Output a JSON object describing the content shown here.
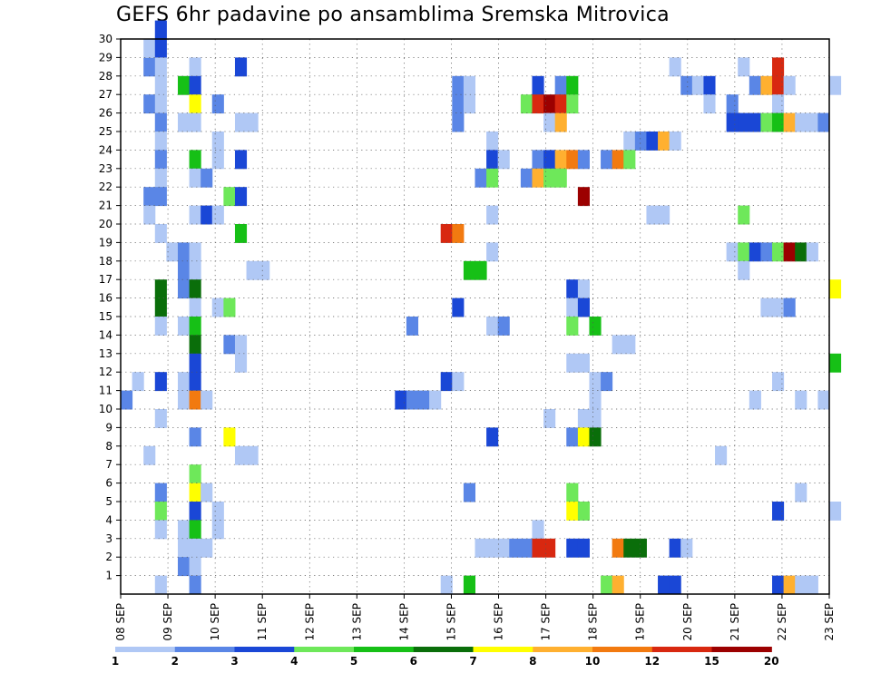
{
  "chart_data": {
    "type": "heatmap",
    "title": "GEFS 6hr padavine po ansamblima Sremska Mitrovica",
    "x_tick_labels": [
      "08 SEP",
      "09 SEP",
      "10 SEP",
      "11 SEP",
      "12 SEP",
      "13 SEP",
      "14 SEP",
      "15 SEP",
      "16 SEP",
      "17 SEP",
      "18 SEP",
      "19 SEP",
      "20 SEP",
      "21 SEP",
      "22 SEP",
      "23 SEP"
    ],
    "y_tick_labels": [
      1,
      2,
      3,
      4,
      5,
      6,
      7,
      8,
      9,
      10,
      11,
      12,
      13,
      14,
      15,
      16,
      17,
      18,
      19,
      20,
      21,
      22,
      23,
      24,
      25,
      26,
      27,
      28,
      29,
      30
    ],
    "x_range_steps": [
      0,
      60
    ],
    "y_range_members": [
      0,
      30
    ],
    "grid": true,
    "colorbar": {
      "labels": [
        "1",
        "2",
        "3",
        "4",
        "5",
        "6",
        "7",
        "8",
        "10",
        "12",
        "15",
        "20"
      ],
      "colors": [
        "#b0c8f5",
        "#5a86e6",
        "#1a47d6",
        "#6ee85a",
        "#16c016",
        "#0a6e0a",
        "#ffff00",
        "#ffb030",
        "#f27a10",
        "#d82810",
        "#9c0000"
      ]
    },
    "cells": [
      {
        "x": 0,
        "y": 10,
        "c": 1
      },
      {
        "x": 1,
        "y": 11,
        "c": 0
      },
      {
        "x": 2,
        "y": 28,
        "c": 1
      },
      {
        "x": 2,
        "y": 29,
        "c": 0
      },
      {
        "x": 2,
        "y": 26,
        "c": 1
      },
      {
        "x": 2,
        "y": 21,
        "c": 1
      },
      {
        "x": 2,
        "y": 20,
        "c": 0
      },
      {
        "x": 2,
        "y": 7,
        "c": 0
      },
      {
        "x": 3,
        "y": 30,
        "c": 2
      },
      {
        "x": 3,
        "y": 29,
        "c": 2
      },
      {
        "x": 3,
        "y": 28,
        "c": 0
      },
      {
        "x": 3,
        "y": 27,
        "c": 0
      },
      {
        "x": 3,
        "y": 26,
        "c": 0
      },
      {
        "x": 3,
        "y": 25,
        "c": 1
      },
      {
        "x": 3,
        "y": 24,
        "c": 0
      },
      {
        "x": 3,
        "y": 23,
        "c": 1
      },
      {
        "x": 3,
        "y": 22,
        "c": 0
      },
      {
        "x": 3,
        "y": 21,
        "c": 1
      },
      {
        "x": 3,
        "y": 19,
        "c": 0
      },
      {
        "x": 3,
        "y": 16,
        "c": 5
      },
      {
        "x": 3,
        "y": 15,
        "c": 5
      },
      {
        "x": 3,
        "y": 14,
        "c": 0
      },
      {
        "x": 3,
        "y": 11,
        "c": 2
      },
      {
        "x": 3,
        "y": 9,
        "c": 0
      },
      {
        "x": 3,
        "y": 5,
        "c": 1
      },
      {
        "x": 3,
        "y": 4,
        "c": 3
      },
      {
        "x": 3,
        "y": 3,
        "c": 0
      },
      {
        "x": 3,
        "y": 0,
        "c": 0
      },
      {
        "x": 4,
        "y": 18,
        "c": 0
      },
      {
        "x": 5,
        "y": 27,
        "c": 4
      },
      {
        "x": 5,
        "y": 25,
        "c": 0
      },
      {
        "x": 5,
        "y": 18,
        "c": 1
      },
      {
        "x": 5,
        "y": 17,
        "c": 1
      },
      {
        "x": 5,
        "y": 16,
        "c": 1
      },
      {
        "x": 5,
        "y": 14,
        "c": 0
      },
      {
        "x": 5,
        "y": 11,
        "c": 0
      },
      {
        "x": 5,
        "y": 10,
        "c": 0
      },
      {
        "x": 5,
        "y": 3,
        "c": 0
      },
      {
        "x": 5,
        "y": 2,
        "c": 0
      },
      {
        "x": 5,
        "y": 1,
        "c": 1
      },
      {
        "x": 6,
        "y": 28,
        "c": 0
      },
      {
        "x": 6,
        "y": 27,
        "c": 2
      },
      {
        "x": 6,
        "y": 26,
        "c": 6
      },
      {
        "x": 6,
        "y": 25,
        "c": 0
      },
      {
        "x": 6,
        "y": 23,
        "c": 4
      },
      {
        "x": 6,
        "y": 22,
        "c": 0
      },
      {
        "x": 6,
        "y": 20,
        "c": 0
      },
      {
        "x": 6,
        "y": 18,
        "c": 0
      },
      {
        "x": 6,
        "y": 17,
        "c": 0
      },
      {
        "x": 6,
        "y": 16,
        "c": 5
      },
      {
        "x": 6,
        "y": 15,
        "c": 0
      },
      {
        "x": 6,
        "y": 14,
        "c": 4
      },
      {
        "x": 6,
        "y": 13,
        "c": 5
      },
      {
        "x": 6,
        "y": 12,
        "c": 2
      },
      {
        "x": 6,
        "y": 11,
        "c": 2
      },
      {
        "x": 6,
        "y": 10,
        "c": 8
      },
      {
        "x": 6,
        "y": 8,
        "c": 1
      },
      {
        "x": 6,
        "y": 6,
        "c": 3
      },
      {
        "x": 6,
        "y": 5,
        "c": 6
      },
      {
        "x": 6,
        "y": 4,
        "c": 2
      },
      {
        "x": 6,
        "y": 3,
        "c": 4
      },
      {
        "x": 6,
        "y": 2,
        "c": 0
      },
      {
        "x": 6,
        "y": 1,
        "c": 0
      },
      {
        "x": 6,
        "y": 0,
        "c": 1
      },
      {
        "x": 7,
        "y": 22,
        "c": 1
      },
      {
        "x": 7,
        "y": 20,
        "c": 2
      },
      {
        "x": 7,
        "y": 10,
        "c": 0
      },
      {
        "x": 7,
        "y": 5,
        "c": 0
      },
      {
        "x": 7,
        "y": 2,
        "c": 0
      },
      {
        "x": 8,
        "y": 26,
        "c": 1
      },
      {
        "x": 8,
        "y": 24,
        "c": 0
      },
      {
        "x": 8,
        "y": 23,
        "c": 0
      },
      {
        "x": 8,
        "y": 20,
        "c": 0
      },
      {
        "x": 8,
        "y": 15,
        "c": 0
      },
      {
        "x": 8,
        "y": 4,
        "c": 0
      },
      {
        "x": 8,
        "y": 3,
        "c": 0
      },
      {
        "x": 9,
        "y": 21,
        "c": 3
      },
      {
        "x": 9,
        "y": 15,
        "c": 3
      },
      {
        "x": 9,
        "y": 13,
        "c": 1
      },
      {
        "x": 9,
        "y": 8,
        "c": 6
      },
      {
        "x": 10,
        "y": 28,
        "c": 2
      },
      {
        "x": 10,
        "y": 25,
        "c": 0
      },
      {
        "x": 10,
        "y": 23,
        "c": 2
      },
      {
        "x": 10,
        "y": 21,
        "c": 2
      },
      {
        "x": 10,
        "y": 19,
        "c": 4
      },
      {
        "x": 10,
        "y": 13,
        "c": 0
      },
      {
        "x": 10,
        "y": 12,
        "c": 0
      },
      {
        "x": 10,
        "y": 7,
        "c": 0
      },
      {
        "x": 11,
        "y": 25,
        "c": 0
      },
      {
        "x": 11,
        "y": 17,
        "c": 0
      },
      {
        "x": 11,
        "y": 7,
        "c": 0
      },
      {
        "x": 12,
        "y": 17,
        "c": 0
      },
      {
        "x": 24,
        "y": 10,
        "c": 2
      },
      {
        "x": 25,
        "y": 14,
        "c": 1
      },
      {
        "x": 25,
        "y": 10,
        "c": 1
      },
      {
        "x": 26,
        "y": 10,
        "c": 1
      },
      {
        "x": 27,
        "y": 10,
        "c": 0
      },
      {
        "x": 28,
        "y": 19,
        "c": 9
      },
      {
        "x": 28,
        "y": 11,
        "c": 2
      },
      {
        "x": 28,
        "y": 0,
        "c": 0
      },
      {
        "x": 29,
        "y": 27,
        "c": 1
      },
      {
        "x": 29,
        "y": 26,
        "c": 1
      },
      {
        "x": 29,
        "y": 25,
        "c": 1
      },
      {
        "x": 29,
        "y": 19,
        "c": 8
      },
      {
        "x": 29,
        "y": 15,
        "c": 2
      },
      {
        "x": 29,
        "y": 11,
        "c": 0
      },
      {
        "x": 30,
        "y": 27,
        "c": 0
      },
      {
        "x": 30,
        "y": 26,
        "c": 0
      },
      {
        "x": 30,
        "y": 17,
        "c": 4
      },
      {
        "x": 30,
        "y": 5,
        "c": 1
      },
      {
        "x": 30,
        "y": 0,
        "c": 4
      },
      {
        "x": 31,
        "y": 22,
        "c": 1
      },
      {
        "x": 31,
        "y": 17,
        "c": 4
      },
      {
        "x": 31,
        "y": 2,
        "c": 0
      },
      {
        "x": 32,
        "y": 24,
        "c": 0
      },
      {
        "x": 32,
        "y": 23,
        "c": 2
      },
      {
        "x": 32,
        "y": 22,
        "c": 3
      },
      {
        "x": 32,
        "y": 20,
        "c": 0
      },
      {
        "x": 32,
        "y": 18,
        "c": 0
      },
      {
        "x": 32,
        "y": 14,
        "c": 0
      },
      {
        "x": 32,
        "y": 8,
        "c": 2
      },
      {
        "x": 32,
        "y": 2,
        "c": 0
      },
      {
        "x": 33,
        "y": 23,
        "c": 0
      },
      {
        "x": 33,
        "y": 14,
        "c": 1
      },
      {
        "x": 33,
        "y": 2,
        "c": 0
      },
      {
        "x": 34,
        "y": 2,
        "c": 1
      },
      {
        "x": 35,
        "y": 26,
        "c": 3
      },
      {
        "x": 35,
        "y": 22,
        "c": 1
      },
      {
        "x": 35,
        "y": 2,
        "c": 1
      },
      {
        "x": 36,
        "y": 27,
        "c": 2
      },
      {
        "x": 36,
        "y": 26,
        "c": 9
      },
      {
        "x": 36,
        "y": 23,
        "c": 1
      },
      {
        "x": 36,
        "y": 22,
        "c": 7
      },
      {
        "x": 36,
        "y": 3,
        "c": 0
      },
      {
        "x": 36,
        "y": 2,
        "c": 9
      },
      {
        "x": 37,
        "y": 26,
        "c": 10
      },
      {
        "x": 37,
        "y": 25,
        "c": 0
      },
      {
        "x": 37,
        "y": 23,
        "c": 2
      },
      {
        "x": 37,
        "y": 22,
        "c": 3
      },
      {
        "x": 37,
        "y": 9,
        "c": 0
      },
      {
        "x": 37,
        "y": 2,
        "c": 9
      },
      {
        "x": 38,
        "y": 27,
        "c": 1
      },
      {
        "x": 38,
        "y": 26,
        "c": 9
      },
      {
        "x": 38,
        "y": 25,
        "c": 7
      },
      {
        "x": 38,
        "y": 23,
        "c": 7
      },
      {
        "x": 38,
        "y": 22,
        "c": 3
      },
      {
        "x": 39,
        "y": 27,
        "c": 4
      },
      {
        "x": 39,
        "y": 26,
        "c": 3
      },
      {
        "x": 39,
        "y": 23,
        "c": 8
      },
      {
        "x": 39,
        "y": 16,
        "c": 2
      },
      {
        "x": 39,
        "y": 15,
        "c": 0
      },
      {
        "x": 39,
        "y": 14,
        "c": 3
      },
      {
        "x": 39,
        "y": 12,
        "c": 0
      },
      {
        "x": 39,
        "y": 8,
        "c": 1
      },
      {
        "x": 39,
        "y": 5,
        "c": 3
      },
      {
        "x": 39,
        "y": 4,
        "c": 6
      },
      {
        "x": 39,
        "y": 2,
        "c": 2
      },
      {
        "x": 40,
        "y": 23,
        "c": 1
      },
      {
        "x": 40,
        "y": 21,
        "c": 10
      },
      {
        "x": 40,
        "y": 16,
        "c": 0
      },
      {
        "x": 40,
        "y": 15,
        "c": 2
      },
      {
        "x": 40,
        "y": 12,
        "c": 0
      },
      {
        "x": 40,
        "y": 9,
        "c": 0
      },
      {
        "x": 40,
        "y": 8,
        "c": 6
      },
      {
        "x": 40,
        "y": 4,
        "c": 3
      },
      {
        "x": 40,
        "y": 2,
        "c": 2
      },
      {
        "x": 41,
        "y": 14,
        "c": 4
      },
      {
        "x": 41,
        "y": 11,
        "c": 0
      },
      {
        "x": 41,
        "y": 10,
        "c": 0
      },
      {
        "x": 41,
        "y": 9,
        "c": 0
      },
      {
        "x": 41,
        "y": 8,
        "c": 5
      },
      {
        "x": 42,
        "y": 23,
        "c": 1
      },
      {
        "x": 42,
        "y": 11,
        "c": 1
      },
      {
        "x": 42,
        "y": 0,
        "c": 3
      },
      {
        "x": 43,
        "y": 23,
        "c": 8
      },
      {
        "x": 43,
        "y": 13,
        "c": 0
      },
      {
        "x": 43,
        "y": 2,
        "c": 8
      },
      {
        "x": 43,
        "y": 0,
        "c": 7
      },
      {
        "x": 44,
        "y": 24,
        "c": 0
      },
      {
        "x": 44,
        "y": 23,
        "c": 3
      },
      {
        "x": 44,
        "y": 13,
        "c": 0
      },
      {
        "x": 44,
        "y": 2,
        "c": 5
      },
      {
        "x": 45,
        "y": 24,
        "c": 1
      },
      {
        "x": 45,
        "y": 2,
        "c": 5
      },
      {
        "x": 46,
        "y": 24,
        "c": 2
      },
      {
        "x": 46,
        "y": 20,
        "c": 0
      },
      {
        "x": 47,
        "y": 24,
        "c": 7
      },
      {
        "x": 47,
        "y": 20,
        "c": 0
      },
      {
        "x": 47,
        "y": 0,
        "c": 2
      },
      {
        "x": 48,
        "y": 28,
        "c": 0
      },
      {
        "x": 48,
        "y": 24,
        "c": 0
      },
      {
        "x": 48,
        "y": 2,
        "c": 2
      },
      {
        "x": 48,
        "y": 0,
        "c": 2
      },
      {
        "x": 49,
        "y": 27,
        "c": 1
      },
      {
        "x": 49,
        "y": 2,
        "c": 0
      },
      {
        "x": 50,
        "y": 27,
        "c": 0
      },
      {
        "x": 51,
        "y": 27,
        "c": 2
      },
      {
        "x": 51,
        "y": 26,
        "c": 0
      },
      {
        "x": 52,
        "y": 7,
        "c": 0
      },
      {
        "x": 53,
        "y": 26,
        "c": 1
      },
      {
        "x": 53,
        "y": 25,
        "c": 2
      },
      {
        "x": 53,
        "y": 18,
        "c": 0
      },
      {
        "x": 54,
        "y": 28,
        "c": 0
      },
      {
        "x": 54,
        "y": 25,
        "c": 2
      },
      {
        "x": 54,
        "y": 20,
        "c": 3
      },
      {
        "x": 54,
        "y": 18,
        "c": 3
      },
      {
        "x": 54,
        "y": 17,
        "c": 0
      },
      {
        "x": 55,
        "y": 27,
        "c": 1
      },
      {
        "x": 55,
        "y": 25,
        "c": 2
      },
      {
        "x": 55,
        "y": 18,
        "c": 2
      },
      {
        "x": 55,
        "y": 10,
        "c": 0
      },
      {
        "x": 56,
        "y": 27,
        "c": 7
      },
      {
        "x": 56,
        "y": 25,
        "c": 3
      },
      {
        "x": 56,
        "y": 18,
        "c": 1
      },
      {
        "x": 56,
        "y": 15,
        "c": 0
      },
      {
        "x": 57,
        "y": 28,
        "c": 9
      },
      {
        "x": 57,
        "y": 27,
        "c": 9
      },
      {
        "x": 57,
        "y": 26,
        "c": 0
      },
      {
        "x": 57,
        "y": 25,
        "c": 4
      },
      {
        "x": 57,
        "y": 18,
        "c": 3
      },
      {
        "x": 57,
        "y": 15,
        "c": 0
      },
      {
        "x": 57,
        "y": 11,
        "c": 0
      },
      {
        "x": 57,
        "y": 4,
        "c": 2
      },
      {
        "x": 57,
        "y": 0,
        "c": 2
      },
      {
        "x": 58,
        "y": 27,
        "c": 0
      },
      {
        "x": 58,
        "y": 25,
        "c": 7
      },
      {
        "x": 58,
        "y": 18,
        "c": 10
      },
      {
        "x": 58,
        "y": 15,
        "c": 1
      },
      {
        "x": 58,
        "y": 0,
        "c": 7
      },
      {
        "x": 59,
        "y": 25,
        "c": 0
      },
      {
        "x": 59,
        "y": 18,
        "c": 5
      },
      {
        "x": 59,
        "y": 10,
        "c": 0
      },
      {
        "x": 59,
        "y": 5,
        "c": 0
      },
      {
        "x": 59,
        "y": 0,
        "c": 0
      },
      {
        "x": 60,
        "y": 25,
        "c": 0
      },
      {
        "x": 60,
        "y": 18,
        "c": 0
      },
      {
        "x": 60,
        "y": 0,
        "c": 0
      },
      {
        "x": 61,
        "y": 25,
        "c": 1
      },
      {
        "x": 61,
        "y": 10,
        "c": 0
      },
      {
        "x": 62,
        "y": 27,
        "c": 0
      },
      {
        "x": 62,
        "y": 16,
        "c": 6
      },
      {
        "x": 62,
        "y": 12,
        "c": 4
      },
      {
        "x": 62,
        "y": 4,
        "c": 0
      }
    ]
  }
}
